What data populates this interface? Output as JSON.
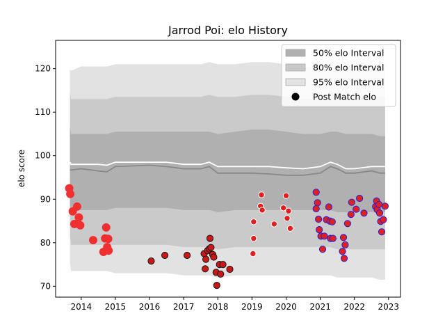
{
  "chart_data": {
    "type": "scatter",
    "title": "Jarrod Poi: elo History",
    "xlabel": "",
    "ylabel": "elo score",
    "xlim": [
      2013.25,
      2023.35
    ],
    "ylim": [
      67.5,
      126.5
    ],
    "xticks": [
      2014,
      2015,
      2016,
      2017,
      2018,
      2019,
      2020,
      2021,
      2022,
      2023
    ],
    "yticks": [
      70,
      80,
      90,
      100,
      110,
      120
    ],
    "legend_position": "upper right",
    "legend": [
      {
        "label": "50% elo Interval",
        "kind": "band",
        "color": "#b0b0b0"
      },
      {
        "label": "80% elo Interval",
        "kind": "band",
        "color": "#c8c8c8"
      },
      {
        "label": "95% elo Interval",
        "kind": "band",
        "color": "#e2e2e2"
      },
      {
        "label": "Post Match elo",
        "kind": "marker",
        "color": "#000000"
      }
    ],
    "colors": {
      "band50": "#b0b0b0",
      "band80": "#cacaca",
      "band95": "#e2e2e2",
      "mean_line": "#ffffff",
      "median_line": "#888888"
    },
    "bands": {
      "x": [
        2013.67,
        2013.7,
        2014.0,
        2014.5,
        2014.75,
        2015.0,
        2016.0,
        2016.5,
        2017.0,
        2017.5,
        2017.75,
        2018.0,
        2018.5,
        2019.0,
        2019.5,
        2020.0,
        2020.5,
        2021.0,
        2021.3,
        2021.5,
        2021.75,
        2022.0,
        2022.5,
        2022.75,
        2022.9
      ],
      "p95_low": [
        75.5,
        73.5,
        73.5,
        73.5,
        73.5,
        73.0,
        73.0,
        73.0,
        72.5,
        72.5,
        72.5,
        72.0,
        72.5,
        72.5,
        72.5,
        72.5,
        72.5,
        72.5,
        72.5,
        72.0,
        72.0,
        72.0,
        72.0,
        71.5,
        71.5
      ],
      "p95_high": [
        120.0,
        119.5,
        120.5,
        120.5,
        120.5,
        121.0,
        121.0,
        121.0,
        121.0,
        121.0,
        121.5,
        121.0,
        121.0,
        121.5,
        121.5,
        121.0,
        120.5,
        120.5,
        121.0,
        121.0,
        120.5,
        121.0,
        121.0,
        121.0,
        121.0
      ],
      "p80_low": [
        81.5,
        79.5,
        79.5,
        79.5,
        79.5,
        79.5,
        79.5,
        79.5,
        79.0,
        79.0,
        79.0,
        78.5,
        79.0,
        79.0,
        79.0,
        79.0,
        79.0,
        79.0,
        79.0,
        78.5,
        78.5,
        78.5,
        78.5,
        78.5,
        78.5
      ],
      "p80_high": [
        114.5,
        113.0,
        113.0,
        113.0,
        113.0,
        113.5,
        113.5,
        113.5,
        113.5,
        113.5,
        114.0,
        113.5,
        113.5,
        114.0,
        114.0,
        113.5,
        113.0,
        113.0,
        113.5,
        113.5,
        113.5,
        113.5,
        113.5,
        113.5,
        113.5
      ],
      "p50_low": [
        89.0,
        87.5,
        87.5,
        87.5,
        87.5,
        88.0,
        88.0,
        88.0,
        87.5,
        87.5,
        87.5,
        87.0,
        87.5,
        87.5,
        87.5,
        87.5,
        87.5,
        87.5,
        87.5,
        87.0,
        87.0,
        87.0,
        87.0,
        87.0,
        87.0
      ],
      "p50_high": [
        106.5,
        105.0,
        105.0,
        105.0,
        105.0,
        105.5,
        105.5,
        105.5,
        105.5,
        105.5,
        105.5,
        105.0,
        105.5,
        106.0,
        106.0,
        105.5,
        105.0,
        105.0,
        105.5,
        105.5,
        105.0,
        105.0,
        105.0,
        104.5,
        104.5
      ],
      "mean": [
        98.5,
        98.0,
        98.0,
        98.0,
        97.8,
        98.5,
        98.5,
        98.5,
        98.0,
        98.0,
        98.5,
        97.5,
        97.5,
        97.5,
        97.5,
        97.2,
        97.0,
        97.5,
        98.5,
        98.0,
        97.0,
        97.0,
        97.5,
        97.5,
        97.5
      ],
      "median": [
        96.8,
        96.7,
        97.0,
        96.5,
        96.3,
        97.5,
        97.8,
        97.5,
        97.0,
        97.0,
        97.5,
        96.0,
        96.0,
        96.0,
        95.8,
        95.5,
        95.5,
        96.0,
        97.5,
        97.0,
        96.0,
        96.0,
        96.5,
        96.0,
        96.0
      ]
    },
    "series": [
      {
        "fill": "#f03030",
        "edge": "#f03030",
        "size": 5.5,
        "points": [
          [
            2013.65,
            92.5
          ],
          [
            2013.68,
            91.2
          ],
          [
            2013.75,
            87.2
          ],
          [
            2013.8,
            84.3
          ],
          [
            2013.88,
            88.3
          ],
          [
            2013.93,
            85.8
          ],
          [
            2013.97,
            84.0
          ],
          [
            2014.35,
            80.6
          ],
          [
            2014.65,
            77.9
          ],
          [
            2014.7,
            81.0
          ],
          [
            2014.73,
            83.5
          ],
          [
            2014.76,
            79.0
          ],
          [
            2014.79,
            80.9
          ],
          [
            2014.8,
            78.2
          ]
        ]
      },
      {
        "fill": "#e02020",
        "edge": "#ffffff",
        "size": 4.2,
        "points": [
          [
            2019.05,
            84.8
          ],
          [
            2019.05,
            81.0
          ],
          [
            2019.03,
            77.5
          ],
          [
            2019.25,
            88.4
          ],
          [
            2019.28,
            91.0
          ],
          [
            2019.3,
            87.5
          ],
          [
            2019.65,
            84.3
          ],
          [
            2019.92,
            88.0
          ],
          [
            2020.0,
            90.8
          ],
          [
            2020.03,
            85.6
          ],
          [
            2020.07,
            87.3
          ],
          [
            2020.12,
            83.3
          ]
        ]
      },
      {
        "fill": "#c81818",
        "edge": "#1a1a1a",
        "size": 4.6,
        "points": [
          [
            2016.05,
            75.8
          ],
          [
            2016.45,
            77.1
          ],
          [
            2017.1,
            77.1
          ],
          [
            2017.6,
            77.5
          ],
          [
            2017.63,
            74.0
          ],
          [
            2017.65,
            76.2
          ],
          [
            2017.7,
            78.2
          ],
          [
            2017.75,
            78.6
          ],
          [
            2017.77,
            81.0
          ],
          [
            2017.8,
            78.9
          ],
          [
            2017.85,
            77.3
          ],
          [
            2017.88,
            76.7
          ],
          [
            2017.95,
            73.2
          ],
          [
            2017.97,
            70.2
          ],
          [
            2018.05,
            75.0
          ],
          [
            2018.08,
            72.8
          ],
          [
            2018.15,
            75.0
          ],
          [
            2018.35,
            73.9
          ]
        ]
      },
      {
        "fill": "#e02020",
        "edge": "#2020e0",
        "size": 4.6,
        "points": [
          [
            2020.88,
            91.6
          ],
          [
            2020.88,
            87.8
          ],
          [
            2020.92,
            89.2
          ],
          [
            2020.95,
            85.4
          ],
          [
            2020.97,
            83.0
          ],
          [
            2021.02,
            81.5
          ],
          [
            2021.07,
            78.5
          ],
          [
            2021.12,
            81.5
          ],
          [
            2021.18,
            85.3
          ],
          [
            2021.25,
            88.2
          ],
          [
            2021.28,
            85.0
          ],
          [
            2021.3,
            81.0
          ],
          [
            2021.35,
            84.8
          ],
          [
            2021.37,
            81.0
          ],
          [
            2021.65,
            78.0
          ],
          [
            2021.68,
            81.2
          ],
          [
            2021.7,
            76.4
          ],
          [
            2021.73,
            79.5
          ],
          [
            2021.8,
            84.4
          ],
          [
            2021.9,
            86.5
          ],
          [
            2021.92,
            89.3
          ],
          [
            2022.05,
            87.7
          ],
          [
            2022.15,
            90.2
          ],
          [
            2022.28,
            86.8
          ],
          [
            2022.62,
            88.3
          ],
          [
            2022.65,
            89.6
          ],
          [
            2022.67,
            87.6
          ],
          [
            2022.72,
            88.8
          ],
          [
            2022.74,
            86.8
          ],
          [
            2022.77,
            84.9
          ],
          [
            2022.8,
            82.5
          ],
          [
            2022.85,
            85.3
          ],
          [
            2022.9,
            88.4
          ]
        ]
      }
    ]
  }
}
